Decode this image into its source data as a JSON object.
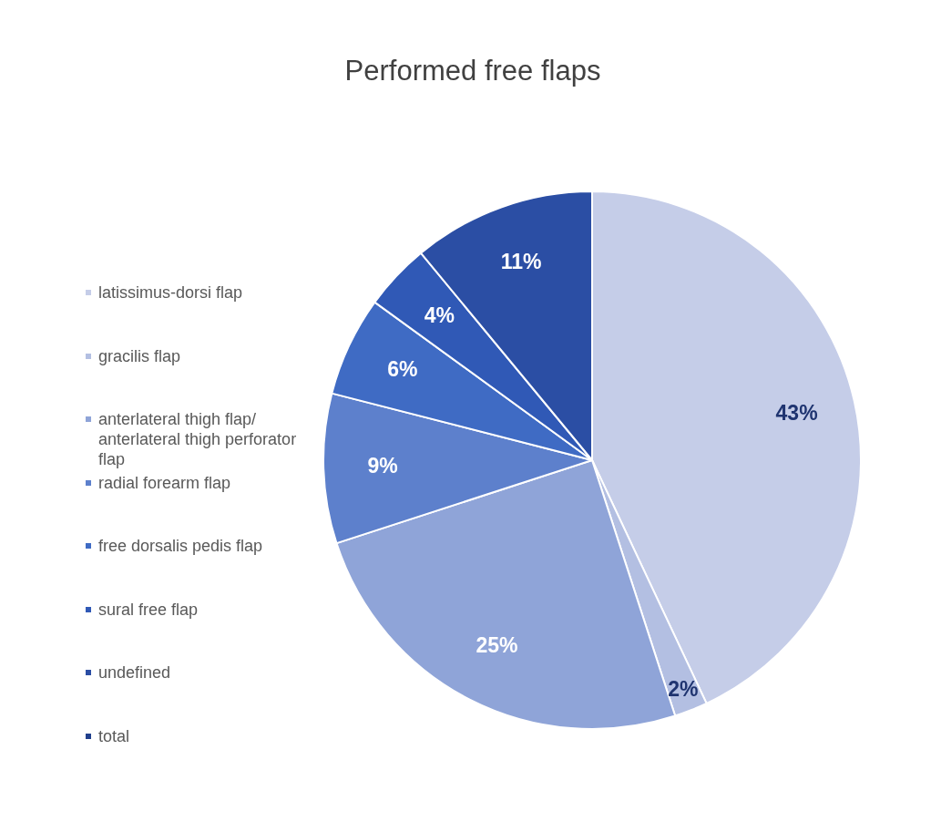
{
  "chart_data": {
    "type": "pie",
    "title": "Performed free flaps",
    "categories": [
      "latissimus-dorsi flap",
      "gracilis flap",
      "anterlateral thigh flap/ anterlateral thigh perforator flap",
      "radial forearm flap",
      "free dorsalis pedis flap",
      "sural free flap",
      "undefined",
      "total"
    ],
    "values": [
      43,
      2,
      25,
      9,
      6,
      4,
      11,
      0
    ],
    "colors": [
      "#c5cde8",
      "#b3bfe2",
      "#8fa4d8",
      "#5d80cc",
      "#3f6bc4",
      "#3059b6",
      "#2b4ea4",
      "#203f8c"
    ],
    "value_labels": [
      "43%",
      "2%",
      "25%",
      "9%",
      "6%",
      "4%",
      "11%",
      null
    ],
    "legend": "left"
  }
}
